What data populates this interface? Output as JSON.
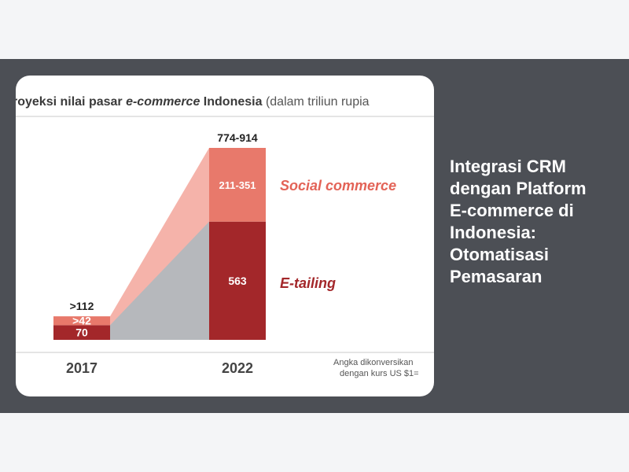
{
  "article": {
    "title": "Integrasi CRM dengan Platform E-commerce di Indonesia: Otomatisasi Pemasaran"
  },
  "chart_data": {
    "type": "bar",
    "title_prefix": "royeksi nilai pasar ",
    "title_italic": "e-commerce",
    "title_suffix": " Indonesia ",
    "title_unit": "(dalam triliun rupia",
    "categories": [
      "2017",
      "2022"
    ],
    "series": [
      {
        "name": "E-tailing",
        "values": [
          70,
          563
        ],
        "labels": [
          "70",
          "563"
        ],
        "color": "#a3272a"
      },
      {
        "name": "Social commerce",
        "values": [
          42,
          351
        ],
        "labels": [
          ">42",
          "211-351"
        ],
        "color": "#e8796b"
      }
    ],
    "totals": [
      ">112",
      "774-914"
    ],
    "footnote_line1": "Angka dikonversikan",
    "footnote_line2": "dengan kurs US $1=",
    "stacked": true,
    "legend_placement": "inline-right",
    "colors": {
      "etailing": "#a3272a",
      "social": "#e8796b",
      "social_area": "#f5b3aa",
      "etailing_area": "#b6b8bc",
      "legend_text": "#e36357"
    }
  }
}
